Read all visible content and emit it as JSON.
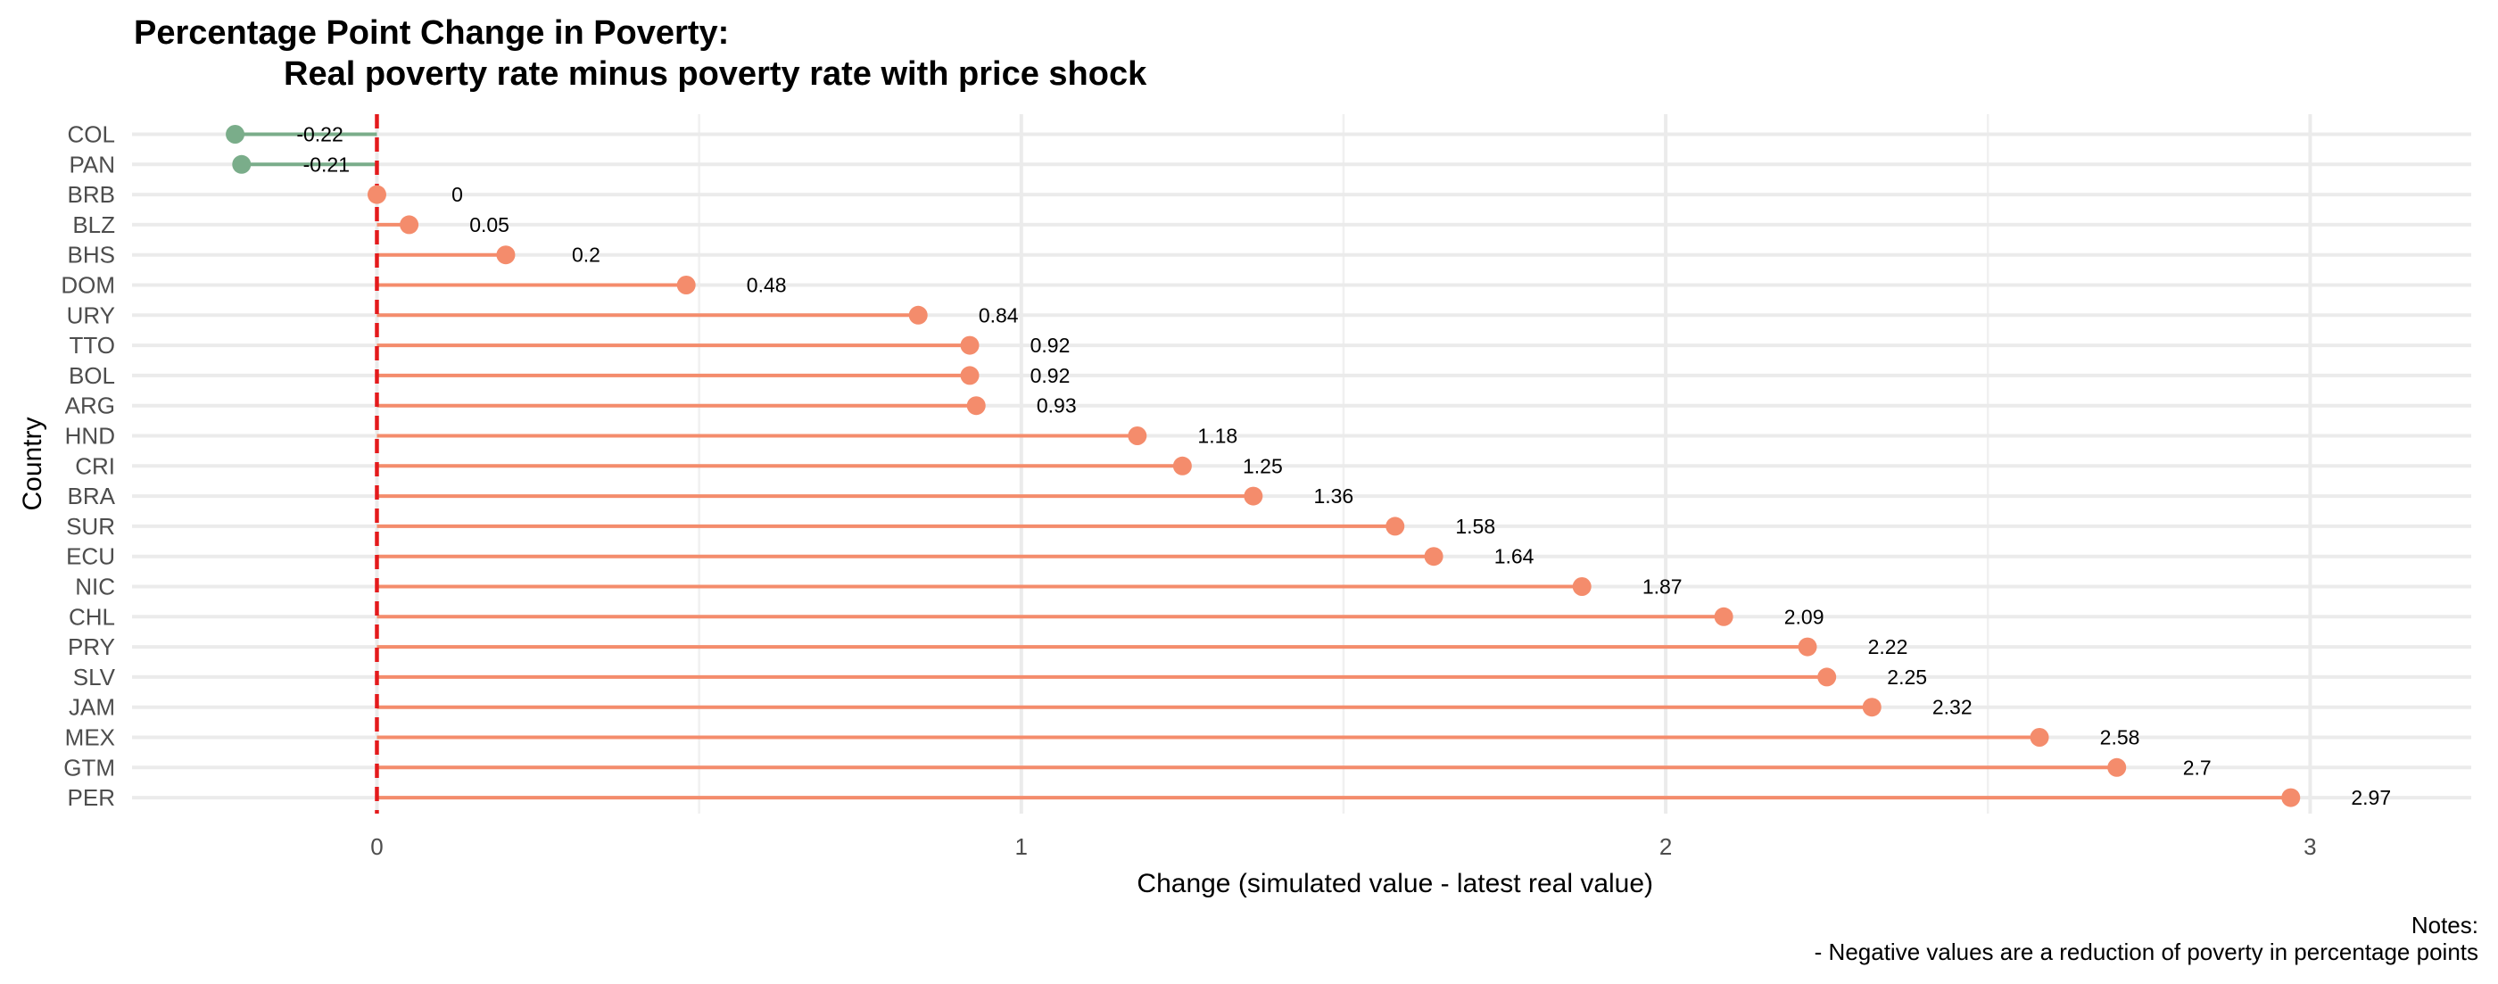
{
  "chart_data": {
    "type": "lollipop",
    "title": "Percentage Point Change in Poverty:",
    "subtitle": "Real poverty rate minus poverty rate with price shock",
    "xlabel": "Change (simulated value - latest real value)",
    "ylabel": "Country",
    "xlim": [
      -0.38,
      3.25
    ],
    "x_ticks": [
      0,
      1,
      2,
      3
    ],
    "reference_line": {
      "x": 0,
      "style": "dashed",
      "color": "#e31a1c"
    },
    "grid": true,
    "colors": {
      "positive": "#f48c6c",
      "negative": "#7aad8a"
    },
    "categories": [
      "COL",
      "PAN",
      "BRB",
      "BLZ",
      "BHS",
      "DOM",
      "URY",
      "TTO",
      "BOL",
      "ARG",
      "HND",
      "CRI",
      "BRA",
      "SUR",
      "ECU",
      "NIC",
      "CHL",
      "PRY",
      "SLV",
      "JAM",
      "MEX",
      "GTM",
      "PER"
    ],
    "values": [
      -0.22,
      -0.21,
      0,
      0.05,
      0.2,
      0.48,
      0.84,
      0.92,
      0.92,
      0.93,
      1.18,
      1.25,
      1.36,
      1.58,
      1.64,
      1.87,
      2.09,
      2.22,
      2.25,
      2.32,
      2.58,
      2.7,
      2.97
    ],
    "labels": [
      "-0.22",
      "-0.21",
      "0",
      "0.05",
      "0.2",
      "0.48",
      "0.84",
      "0.92",
      "0.92",
      "0.93",
      "1.18",
      "1.25",
      "1.36",
      "1.58",
      "1.64",
      "1.87",
      "2.09",
      "2.22",
      "2.25",
      "2.32",
      "2.58",
      "2.7",
      "2.97"
    ],
    "notes": [
      "Notes:",
      "- Negative values are a reduction of poverty in percentage points"
    ]
  }
}
